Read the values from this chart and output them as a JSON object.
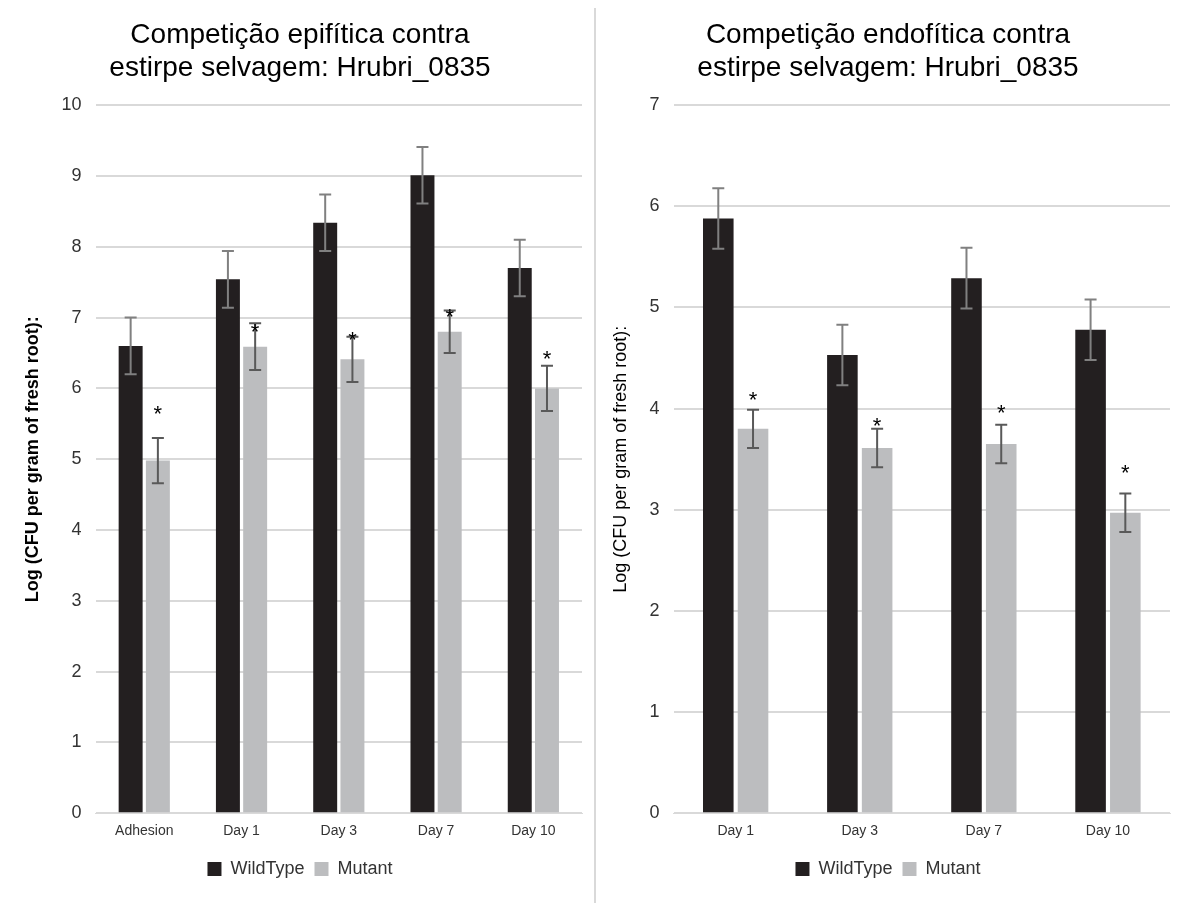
{
  "chart_data": [
    {
      "type": "bar",
      "title": "Competição epifítica contra estirpe selvagem: Hrubri_0835",
      "ylabel": "Log (CFU per gram of fresh root):",
      "categories": [
        "Adhesion",
        "Day 1",
        "Day 3",
        "Day 7",
        "Day 10"
      ],
      "series": [
        {
          "name": "WildType",
          "color": "#231f20",
          "values": [
            6.6,
            7.54,
            8.34,
            9.01,
            7.7
          ],
          "errors": [
            0.4,
            0.4,
            0.4,
            0.4,
            0.4
          ]
        },
        {
          "name": "Mutant",
          "color": "#bcbdbf",
          "values": [
            4.98,
            6.59,
            6.41,
            6.8,
            6.0
          ],
          "errors": [
            0.32,
            0.33,
            0.32,
            0.3,
            0.32
          ]
        }
      ],
      "annotations": [
        {
          "text": "*",
          "x": "Adhesion",
          "y": 5.7
        },
        {
          "text": "*",
          "x": "Day 1",
          "y": 6.85
        },
        {
          "text": "*",
          "x": "Day 3",
          "y": 6.74
        },
        {
          "text": "*",
          "x": "Day 7",
          "y": 7.07
        },
        {
          "text": "*",
          "x": "Day 10",
          "y": 6.47
        }
      ],
      "ylim": [
        0,
        10
      ],
      "yticks": [
        0,
        1,
        2,
        3,
        4,
        5,
        6,
        7,
        8,
        9,
        10
      ],
      "grid": "y",
      "legend": "bottom"
    },
    {
      "type": "bar",
      "title": "Competição endofítica contra estirpe selvagem: Hrubri_0835",
      "ylabel": "Log (CFU per gram of fresh root):",
      "categories": [
        "Day 1",
        "Day 3",
        "Day 7",
        "Day 10"
      ],
      "series": [
        {
          "name": "WildType",
          "color": "#231f20",
          "values": [
            5.88,
            4.53,
            5.29,
            4.78
          ],
          "errors": [
            0.3,
            0.3,
            0.3,
            0.3
          ]
        },
        {
          "name": "Mutant",
          "color": "#bcbdbf",
          "values": [
            3.8,
            3.61,
            3.65,
            2.97
          ],
          "errors": [
            0.19,
            0.19,
            0.19,
            0.19
          ]
        }
      ],
      "annotations": [
        {
          "text": "*",
          "x": "Day 1",
          "y": 4.13
        },
        {
          "text": "*",
          "x": "Day 3",
          "y": 3.87
        },
        {
          "text": "*",
          "x": "Day 7",
          "y": 4.0
        },
        {
          "text": "*",
          "x": "Day 10",
          "y": 3.4
        }
      ],
      "ylim": [
        0,
        7
      ],
      "yticks": [
        0,
        1,
        2,
        3,
        4,
        5,
        6,
        7
      ],
      "grid": "y",
      "legend": "bottom"
    }
  ]
}
